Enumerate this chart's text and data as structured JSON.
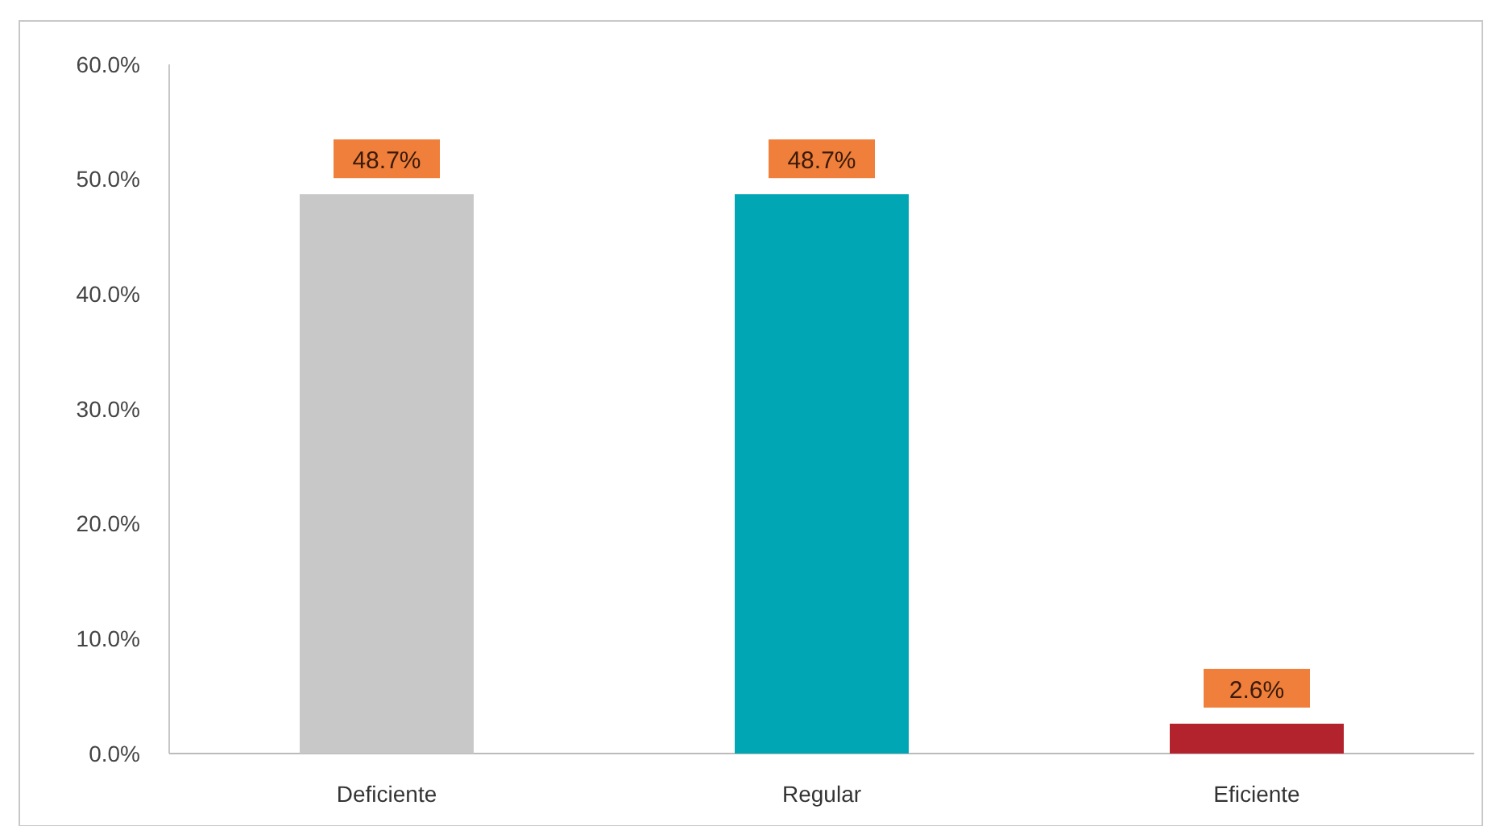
{
  "chart_data": {
    "type": "bar",
    "categories": [
      "Deficiente",
      "Regular",
      "Eficiente"
    ],
    "values": [
      48.7,
      48.7,
      2.6
    ],
    "colors": [
      "#c8c8c8",
      "#00a6b4",
      "#b3232e"
    ],
    "value_labels": [
      "48.7%",
      "48.7%",
      "2.6%"
    ],
    "ylim": [
      0,
      60
    ],
    "yticks": [
      {
        "value": 0,
        "label": "0.0%"
      },
      {
        "value": 10,
        "label": "10.0%"
      },
      {
        "value": 20,
        "label": "20.0%"
      },
      {
        "value": 30,
        "label": "30.0%"
      },
      {
        "value": 40,
        "label": "40.0%"
      },
      {
        "value": 50,
        "label": "50.0%"
      },
      {
        "value": 60,
        "label": "60.0%"
      }
    ],
    "grid": false
  }
}
